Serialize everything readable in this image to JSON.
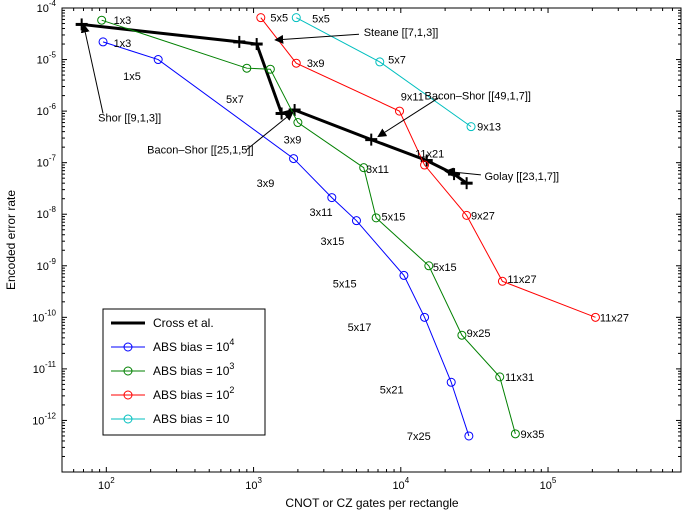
{
  "chart_data": {
    "type": "line",
    "title": "",
    "xlabel": "CNOT or CZ gates per rectangle",
    "ylabel": "Encoded error rate",
    "x_scale": "log",
    "y_scale": "log",
    "xlim": [
      50,
      800000
    ],
    "ylim": [
      1e-13,
      0.0001
    ],
    "x_ticks": [
      {
        "value": 100,
        "base": "10",
        "exp": "2"
      },
      {
        "value": 1000,
        "base": "10",
        "exp": "3"
      },
      {
        "value": 10000,
        "base": "10",
        "exp": "4"
      },
      {
        "value": 100000,
        "base": "10",
        "exp": "5"
      }
    ],
    "y_ticks": [
      {
        "value": 1e-12,
        "base": "10",
        "exp": "-12"
      },
      {
        "value": 1e-11,
        "base": "10",
        "exp": "-11"
      },
      {
        "value": 1e-10,
        "base": "10",
        "exp": "-10"
      },
      {
        "value": 1e-09,
        "base": "10",
        "exp": "-9"
      },
      {
        "value": 1e-08,
        "base": "10",
        "exp": "-8"
      },
      {
        "value": 1e-07,
        "base": "10",
        "exp": "-7"
      },
      {
        "value": 1e-06,
        "base": "10",
        "exp": "-6"
      },
      {
        "value": 1e-05,
        "base": "10",
        "exp": "-5"
      },
      {
        "value": 0.0001,
        "base": "10",
        "exp": "-4"
      }
    ],
    "grid": false,
    "legend_position": "bottom-left",
    "series": [
      {
        "name": "Cross et al.",
        "legend_text": "Cross et al.",
        "color": "#000000",
        "marker": "errorbar",
        "points": [
          {
            "x": 68,
            "y": 4.8e-05
          },
          {
            "x": 800,
            "y": 2.2e-05
          },
          {
            "x": 1050,
            "y": 2e-05
          },
          {
            "x": 1550,
            "y": 9e-07
          },
          {
            "x": 1900,
            "y": 1.05e-06
          },
          {
            "x": 6300,
            "y": 2.8e-07
          },
          {
            "x": 15000,
            "y": 1.1e-07
          },
          {
            "x": 23000,
            "y": 6e-08
          },
          {
            "x": 28000,
            "y": 4e-08
          }
        ]
      },
      {
        "name": "ABS bias = 10^4",
        "legend_text": "ABS bias = 10",
        "legend_exp": "4",
        "color": "#0000ff",
        "marker": "circle",
        "points": [
          {
            "x": 95,
            "y": 2.2e-05
          },
          {
            "x": 225,
            "y": 1e-05
          },
          {
            "x": 1870,
            "y": 1.2e-07
          },
          {
            "x": 3400,
            "y": 2.1e-08
          },
          {
            "x": 5000,
            "y": 7.5e-09
          },
          {
            "x": 10500,
            "y": 6.5e-10
          },
          {
            "x": 14500,
            "y": 1e-10
          },
          {
            "x": 22000,
            "y": 5.5e-12
          },
          {
            "x": 29000,
            "y": 5e-13
          }
        ]
      },
      {
        "name": "ABS bias = 10^3",
        "legend_text": "ABS bias = 10",
        "legend_exp": "3",
        "color": "#008000",
        "marker": "circle",
        "points": [
          {
            "x": 93,
            "y": 5.8e-05
          },
          {
            "x": 900,
            "y": 6.8e-06
          },
          {
            "x": 1300,
            "y": 6.5e-06
          },
          {
            "x": 2000,
            "y": 6e-07
          },
          {
            "x": 5600,
            "y": 8e-08
          },
          {
            "x": 6800,
            "y": 8.5e-09
          },
          {
            "x": 15500,
            "y": 1e-09
          },
          {
            "x": 26000,
            "y": 4.5e-11
          },
          {
            "x": 47000,
            "y": 7e-12
          },
          {
            "x": 60000,
            "y": 5.5e-13
          }
        ]
      },
      {
        "name": "ABS bias = 10^2",
        "legend_text": "ABS bias = 10",
        "legend_exp": "2",
        "color": "#ff0000",
        "marker": "circle",
        "points": [
          {
            "x": 1120,
            "y": 6.5e-05
          },
          {
            "x": 1950,
            "y": 8.5e-06
          },
          {
            "x": 9800,
            "y": 1e-06
          },
          {
            "x": 14500,
            "y": 9e-08
          },
          {
            "x": 28000,
            "y": 9.5e-09
          },
          {
            "x": 49000,
            "y": 5e-10
          },
          {
            "x": 210000,
            "y": 1e-10
          }
        ]
      },
      {
        "name": "ABS bias = 10",
        "legend_text": "ABS bias = 10",
        "legend_exp": "",
        "color": "#00bfbf",
        "marker": "circle",
        "points": [
          {
            "x": 1950,
            "y": 6.5e-05
          },
          {
            "x": 7200,
            "y": 9e-06
          },
          {
            "x": 30000,
            "y": 5e-07
          }
        ]
      }
    ],
    "point_labels": [
      {
        "text": "1x3",
        "x": 112,
        "y": 5.8e-05
      },
      {
        "text": "1x3",
        "x": 112,
        "y": 2.1e-05
      },
      {
        "text": "1x5",
        "x": 130,
        "y": 4.8e-06
      },
      {
        "text": "5x5",
        "x": 1300,
        "y": 6.5e-05
      },
      {
        "text": "5x5",
        "x": 2500,
        "y": 6.2e-05
      },
      {
        "text": "3x9",
        "x": 2300,
        "y": 8.6e-06
      },
      {
        "text": "5x7",
        "x": 8200,
        "y": 1e-05
      },
      {
        "text": "5x7",
        "x": 650,
        "y": 1.7e-06
      },
      {
        "text": "9x11",
        "x": 10000,
        "y": 1.9e-06
      },
      {
        "text": "9x13",
        "x": 33000,
        "y": 5e-07
      },
      {
        "text": "3x9",
        "x": 1600,
        "y": 2.8e-07
      },
      {
        "text": "3x9",
        "x": 1050,
        "y": 4e-08
      },
      {
        "text": "11x21",
        "x": 12500,
        "y": 1.5e-07
      },
      {
        "text": "3x11",
        "x": 5800,
        "y": 7.5e-08
      },
      {
        "text": "3x11",
        "x": 2400,
        "y": 1.1e-08
      },
      {
        "text": "5x15",
        "x": 7400,
        "y": 9e-09
      },
      {
        "text": "9x27",
        "x": 30000,
        "y": 9.5e-09
      },
      {
        "text": "3x15",
        "x": 2850,
        "y": 3e-09
      },
      {
        "text": "5x15",
        "x": 16500,
        "y": 9.5e-10
      },
      {
        "text": "5x15",
        "x": 3450,
        "y": 4.5e-10
      },
      {
        "text": "11x27",
        "x": 53000,
        "y": 5.5e-10
      },
      {
        "text": "11x27",
        "x": 225000,
        "y": 1e-10
      },
      {
        "text": "5x17",
        "x": 4350,
        "y": 6.5e-11
      },
      {
        "text": "9x25",
        "x": 28000,
        "y": 5e-11
      },
      {
        "text": "11x31",
        "x": 51000,
        "y": 7e-12
      },
      {
        "text": "5x21",
        "x": 7200,
        "y": 4e-12
      },
      {
        "text": "9x35",
        "x": 65000,
        "y": 5.5e-13
      },
      {
        "text": "7x25",
        "x": 11000,
        "y": 5e-13
      }
    ],
    "annotations": [
      {
        "text": "Steane [[7,1,3]]",
        "x": 5600,
        "y": 3.4e-05,
        "align": "start",
        "arrow_from": [
          5200,
          3.1e-05
        ],
        "arrow_to": [
          1400,
          2.4e-05
        ]
      },
      {
        "text": "Shor [[9,1,3]]",
        "x": 88,
        "y": 7.5e-07,
        "align": "start",
        "arrow_from": [
          95,
          9e-07
        ],
        "arrow_to": [
          70,
          4.8e-05
        ]
      },
      {
        "text": "Bacon–Shor [[49,1,7]]",
        "x": 14500,
        "y": 2e-06,
        "align": "start",
        "arrow_from": [
          18000,
          1.8e-06
        ],
        "arrow_to": [
          7000,
          3.2e-07
        ]
      },
      {
        "text": "Bacon–Shor [[25,1,5]]",
        "x": 1000,
        "y": 1.8e-07,
        "align": "end",
        "arrow_from": [
          900,
          1.8e-07
        ],
        "arrow_to": [
          1850,
          9.5e-07
        ]
      },
      {
        "text": "Golay [[23,1,7]]",
        "x": 37000,
        "y": 5.5e-08,
        "align": "start",
        "arrow_from": [
          35000,
          5.8e-08
        ],
        "arrow_to": [
          20000,
          6.8e-08
        ]
      }
    ]
  }
}
